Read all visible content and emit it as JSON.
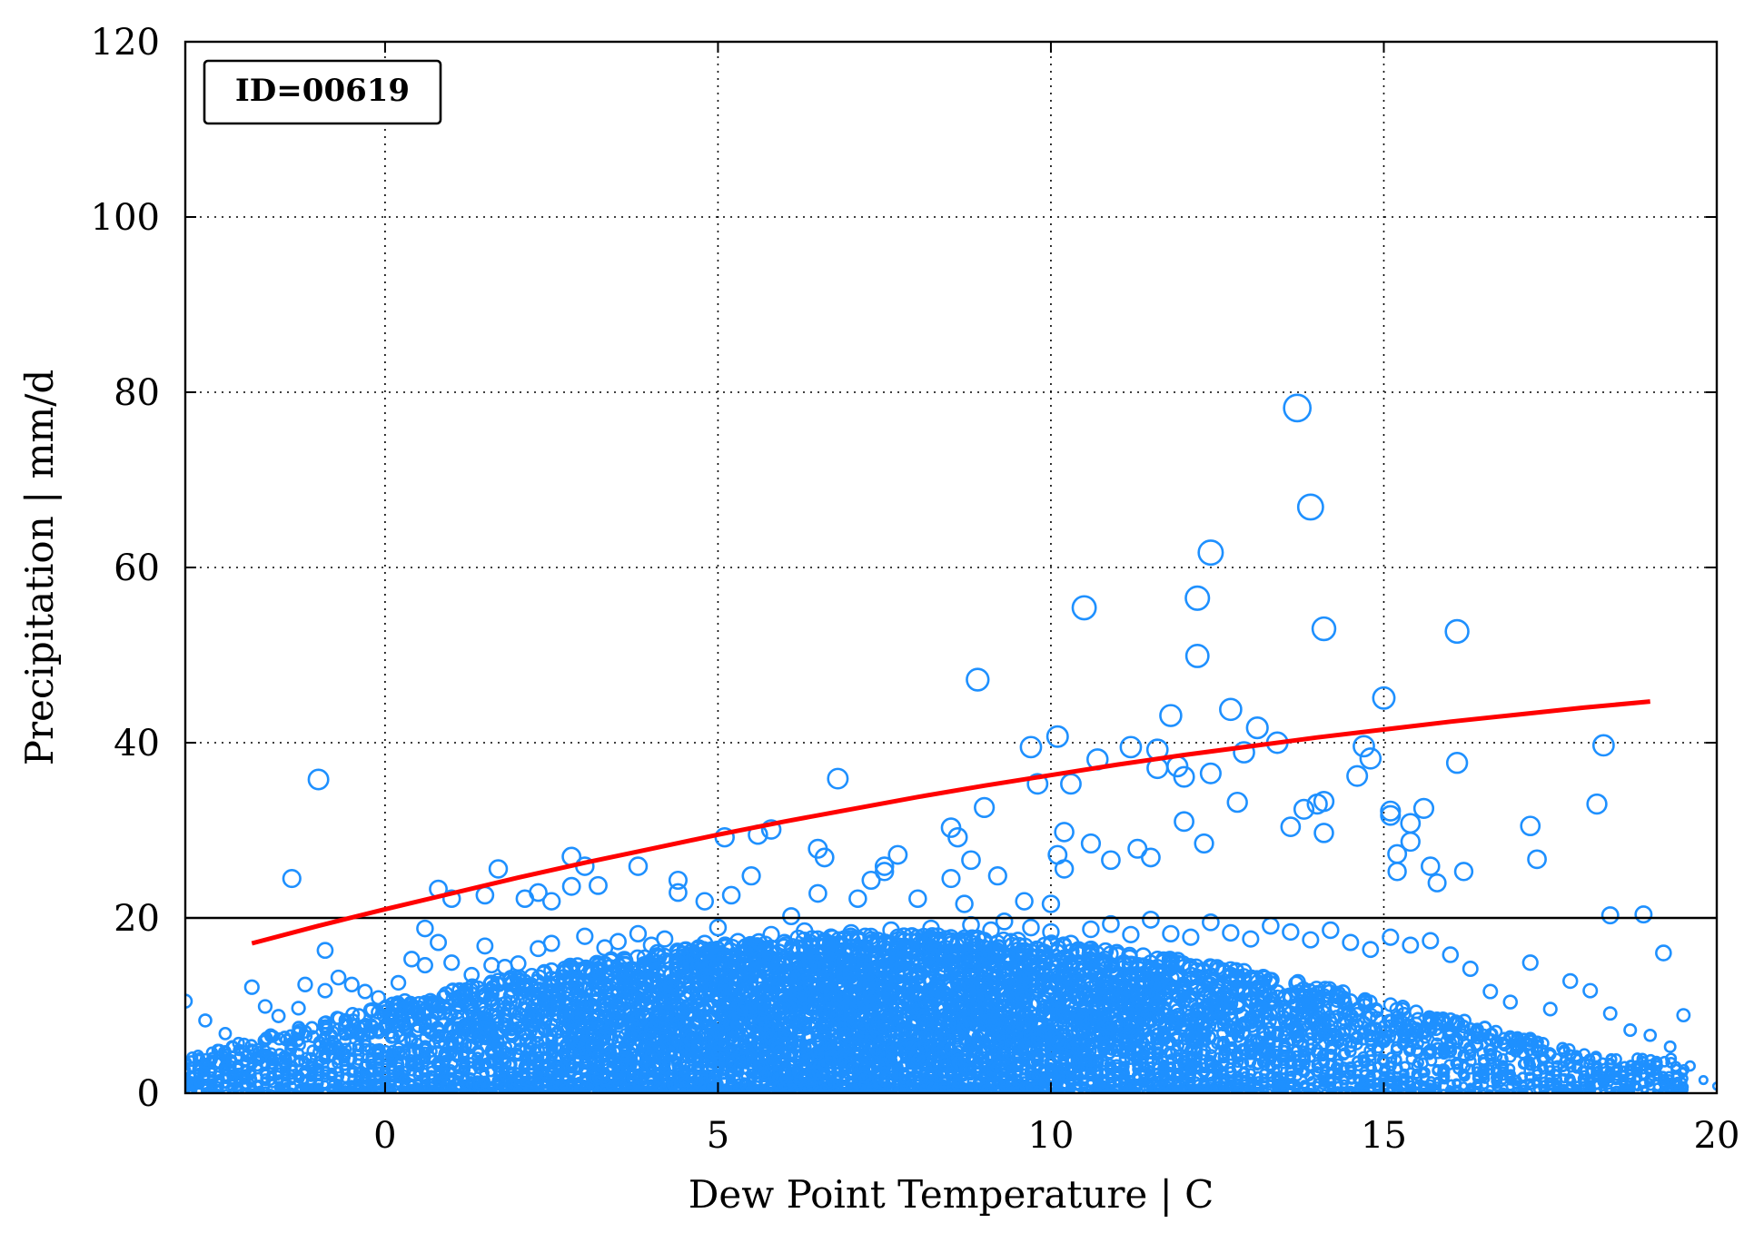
{
  "chart_data": {
    "type": "scatter",
    "title": "",
    "xlabel": "Dew Point Temperature | C",
    "ylabel": "Precipitation | mm/d",
    "xlim": [
      -3,
      20
    ],
    "ylim": [
      0,
      120
    ],
    "xticks": [
      0,
      5,
      10,
      15,
      20
    ],
    "yticks": [
      0,
      20,
      40,
      60,
      80,
      100,
      120
    ],
    "grid": true,
    "annotation": "ID=00619",
    "threshold_line": {
      "y": 20,
      "color": "#000000"
    },
    "colors": {
      "points": "#1e90ff",
      "fit": "#ff0000"
    },
    "fit_curve": {
      "x": [
        -2,
        -1,
        0,
        1,
        2,
        3,
        4,
        5,
        6,
        7,
        8,
        9,
        10,
        11,
        12,
        13,
        14,
        15,
        16,
        17,
        18,
        19
      ],
      "y": [
        17.1,
        19.1,
        21.0,
        22.8,
        24.6,
        26.3,
        27.9,
        29.5,
        31.0,
        32.4,
        33.8,
        35.1,
        36.3,
        37.5,
        38.6,
        39.6,
        40.6,
        41.5,
        42.4,
        43.2,
        44.0,
        44.7
      ]
    },
    "series": [
      {
        "marker": "open-circle-size-by-value",
        "points": [
          [
            -1.4,
            24.5
          ],
          [
            -1.0,
            35.8
          ],
          [
            -0.9,
            16.3
          ],
          [
            0.8,
            23.3
          ],
          [
            1.0,
            22.2
          ],
          [
            1.5,
            22.6
          ],
          [
            1.7,
            25.6
          ],
          [
            2.1,
            22.2
          ],
          [
            2.3,
            22.9
          ],
          [
            2.5,
            21.9
          ],
          [
            2.8,
            27.0
          ],
          [
            2.8,
            23.6
          ],
          [
            3.0,
            25.9
          ],
          [
            3.2,
            23.7
          ],
          [
            3.8,
            25.9
          ],
          [
            4.4,
            24.3
          ],
          [
            4.4,
            22.9
          ],
          [
            4.8,
            21.9
          ],
          [
            5.1,
            29.2
          ],
          [
            5.2,
            22.6
          ],
          [
            5.5,
            24.8
          ],
          [
            5.6,
            29.5
          ],
          [
            5.8,
            30.1
          ],
          [
            6.1,
            20.2
          ],
          [
            6.5,
            27.9
          ],
          [
            6.5,
            22.8
          ],
          [
            6.6,
            26.9
          ],
          [
            6.8,
            35.9
          ],
          [
            7.1,
            22.2
          ],
          [
            7.3,
            24.3
          ],
          [
            7.5,
            25.3
          ],
          [
            7.5,
            25.9
          ],
          [
            7.7,
            27.2
          ],
          [
            8.0,
            22.2
          ],
          [
            8.5,
            24.5
          ],
          [
            8.5,
            30.3
          ],
          [
            8.6,
            29.2
          ],
          [
            8.7,
            21.6
          ],
          [
            8.8,
            26.6
          ],
          [
            8.9,
            47.2
          ],
          [
            9.0,
            32.6
          ],
          [
            9.2,
            24.8
          ],
          [
            9.3,
            19.6
          ],
          [
            9.6,
            21.9
          ],
          [
            9.7,
            39.5
          ],
          [
            9.8,
            35.3
          ],
          [
            10.0,
            21.6
          ],
          [
            10.1,
            40.7
          ],
          [
            10.1,
            27.2
          ],
          [
            10.2,
            25.6
          ],
          [
            10.2,
            29.8
          ],
          [
            10.3,
            35.3
          ],
          [
            10.5,
            55.4
          ],
          [
            10.6,
            28.5
          ],
          [
            10.7,
            38.1
          ],
          [
            10.9,
            26.6
          ],
          [
            11.2,
            39.5
          ],
          [
            11.3,
            27.9
          ],
          [
            11.5,
            26.9
          ],
          [
            11.6,
            39.2
          ],
          [
            11.6,
            37.1
          ],
          [
            11.8,
            43.1
          ],
          [
            11.9,
            37.3
          ],
          [
            12.0,
            36.1
          ],
          [
            12.0,
            31.0
          ],
          [
            12.2,
            56.5
          ],
          [
            12.2,
            49.9
          ],
          [
            12.4,
            61.7
          ],
          [
            12.4,
            36.5
          ],
          [
            12.3,
            28.5
          ],
          [
            12.7,
            43.8
          ],
          [
            12.8,
            33.2
          ],
          [
            12.9,
            38.9
          ],
          [
            13.1,
            41.7
          ],
          [
            13.4,
            40.0
          ],
          [
            13.6,
            30.4
          ],
          [
            13.7,
            78.2
          ],
          [
            13.8,
            32.4
          ],
          [
            13.9,
            66.9
          ],
          [
            14.0,
            33.0
          ],
          [
            14.1,
            53.0
          ],
          [
            14.1,
            29.7
          ],
          [
            14.1,
            33.3
          ],
          [
            14.6,
            36.2
          ],
          [
            14.7,
            39.6
          ],
          [
            14.8,
            38.2
          ],
          [
            15.0,
            45.1
          ],
          [
            15.1,
            32.2
          ],
          [
            15.1,
            31.7
          ],
          [
            15.2,
            27.3
          ],
          [
            15.2,
            25.3
          ],
          [
            15.4,
            30.8
          ],
          [
            15.4,
            28.7
          ],
          [
            15.6,
            32.5
          ],
          [
            15.7,
            25.9
          ],
          [
            15.8,
            24.0
          ],
          [
            16.1,
            52.7
          ],
          [
            16.1,
            37.7
          ],
          [
            16.2,
            25.3
          ],
          [
            17.2,
            30.5
          ],
          [
            17.3,
            26.7
          ],
          [
            18.2,
            33.0
          ],
          [
            18.3,
            39.7
          ],
          [
            18.4,
            20.3
          ],
          [
            18.9,
            20.4
          ],
          [
            19.2,
            16.0
          ],
          [
            19.5,
            8.9
          ],
          [
            -3.0,
            10.5
          ],
          [
            -2.7,
            8.3
          ],
          [
            -2.4,
            6.8
          ],
          [
            -2.2,
            5.7
          ],
          [
            -2.0,
            12.1
          ],
          [
            -1.8,
            9.9
          ],
          [
            -1.6,
            8.8
          ],
          [
            -1.3,
            9.7
          ],
          [
            -1.2,
            12.4
          ],
          [
            -0.9,
            11.7
          ],
          [
            -0.7,
            13.2
          ],
          [
            -0.5,
            12.4
          ],
          [
            -0.3,
            11.6
          ],
          [
            -0.1,
            10.9
          ],
          [
            0.2,
            12.6
          ],
          [
            0.4,
            15.3
          ],
          [
            0.6,
            14.6
          ],
          [
            0.6,
            18.8
          ],
          [
            0.8,
            17.2
          ],
          [
            1.0,
            14.9
          ],
          [
            1.3,
            13.5
          ],
          [
            1.5,
            16.8
          ],
          [
            1.6,
            14.6
          ],
          [
            1.8,
            14.4
          ],
          [
            2.0,
            14.8
          ],
          [
            2.3,
            16.5
          ],
          [
            2.5,
            17.1
          ],
          [
            2.7,
            14.2
          ],
          [
            3.0,
            17.9
          ],
          [
            3.3,
            16.6
          ],
          [
            3.5,
            17.3
          ],
          [
            3.8,
            18.2
          ],
          [
            4.0,
            16.9
          ],
          [
            4.2,
            17.6
          ],
          [
            4.5,
            16.3
          ],
          [
            4.8,
            17.1
          ],
          [
            5.0,
            18.9
          ],
          [
            5.3,
            17.3
          ],
          [
            5.5,
            16.6
          ],
          [
            5.8,
            18.1
          ],
          [
            6.0,
            17.2
          ],
          [
            6.3,
            18.5
          ],
          [
            6.5,
            17.6
          ],
          [
            6.8,
            16.9
          ],
          [
            7.0,
            18.3
          ],
          [
            7.3,
            17.0
          ],
          [
            7.6,
            18.6
          ],
          [
            7.9,
            17.9
          ],
          [
            8.2,
            18.8
          ],
          [
            8.5,
            17.4
          ],
          [
            8.8,
            19.2
          ],
          [
            9.1,
            18.6
          ],
          [
            9.4,
            17.3
          ],
          [
            9.7,
            18.9
          ],
          [
            10.0,
            18.4
          ],
          [
            10.3,
            17.1
          ],
          [
            10.6,
            18.7
          ],
          [
            10.9,
            19.3
          ],
          [
            11.2,
            18.1
          ],
          [
            11.5,
            19.8
          ],
          [
            11.8,
            18.2
          ],
          [
            12.1,
            17.8
          ],
          [
            12.4,
            19.5
          ],
          [
            12.7,
            18.3
          ],
          [
            13.0,
            17.6
          ],
          [
            13.3,
            19.1
          ],
          [
            13.6,
            18.4
          ],
          [
            13.9,
            17.5
          ],
          [
            14.2,
            18.6
          ],
          [
            14.5,
            17.2
          ],
          [
            14.8,
            16.4
          ],
          [
            15.1,
            17.8
          ],
          [
            15.4,
            16.9
          ],
          [
            15.7,
            17.4
          ],
          [
            16.0,
            15.8
          ],
          [
            16.3,
            14.2
          ],
          [
            16.6,
            11.6
          ],
          [
            16.9,
            10.4
          ],
          [
            17.2,
            14.9
          ],
          [
            17.5,
            9.6
          ],
          [
            17.8,
            12.8
          ],
          [
            18.1,
            11.7
          ],
          [
            18.4,
            9.1
          ],
          [
            18.7,
            7.2
          ],
          [
            19.0,
            6.6
          ],
          [
            19.3,
            5.3
          ],
          [
            19.6,
            3.1
          ],
          [
            19.8,
            1.5
          ],
          [
            20.0,
            0.8
          ]
        ]
      }
    ]
  }
}
